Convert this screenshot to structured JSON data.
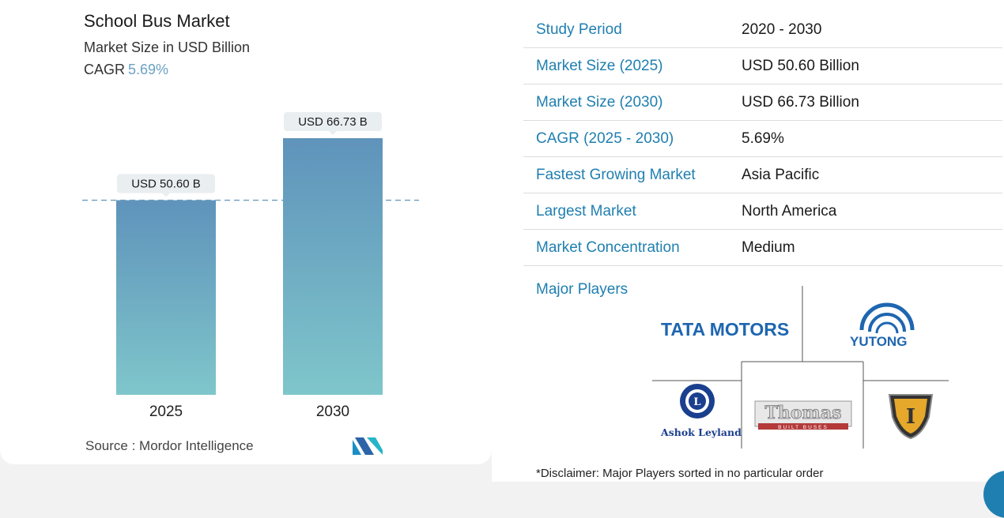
{
  "chart": {
    "title": "School Bus Market",
    "subtitle": "Market Size in USD Billion",
    "cagr_label": "CAGR",
    "cagr_value": "5.69%",
    "source": "Source :  Mordor Intelligence"
  },
  "chart_data": {
    "type": "bar",
    "title": "School Bus Market",
    "subtitle": "Market Size in USD Billion",
    "categories": [
      "2025",
      "2030"
    ],
    "values": [
      50.6,
      66.73
    ],
    "data_labels": [
      "USD 50.60 B",
      "USD 66.73 B"
    ],
    "xlabel": "",
    "ylabel": "",
    "ylim": [
      0,
      66.73
    ],
    "grid": false,
    "reference_line": 50.6,
    "bar_colors": {
      "top": "#5f93bb",
      "bottom": "#7fc6cb"
    }
  },
  "info": {
    "rows": [
      {
        "k": "Study Period",
        "v": "2020 - 2030"
      },
      {
        "k": "Market Size (2025)",
        "v": "USD 50.60 Billion"
      },
      {
        "k": "Market Size (2030)",
        "v": "USD 66.73 Billion"
      },
      {
        "k": "CAGR (2025 - 2030)",
        "v": "5.69%"
      },
      {
        "k": "Fastest Growing Market",
        "v": "Asia Pacific"
      },
      {
        "k": "Largest Market",
        "v": "North America"
      },
      {
        "k": "Market Concentration",
        "v": "Medium"
      }
    ],
    "players_label": "Major Players",
    "disclaimer": "*Disclaimer: Major Players sorted in no particular order"
  },
  "logos": {
    "tata": "TATA MOTORS",
    "yutong": "YUTONG",
    "ashok": "Ashok Leyland",
    "thomas": "Thomas",
    "thomas_sub": "BUILT BUSES",
    "ic_letter": "I"
  },
  "colors": {
    "accent": "#1f7fb0",
    "cagr": "#6aa2c4",
    "bar_top": "#5f93bb",
    "bar_bottom": "#7fc6cb",
    "tata_blue": "#1e66b0",
    "ashok_blue": "#1a3f8f"
  }
}
